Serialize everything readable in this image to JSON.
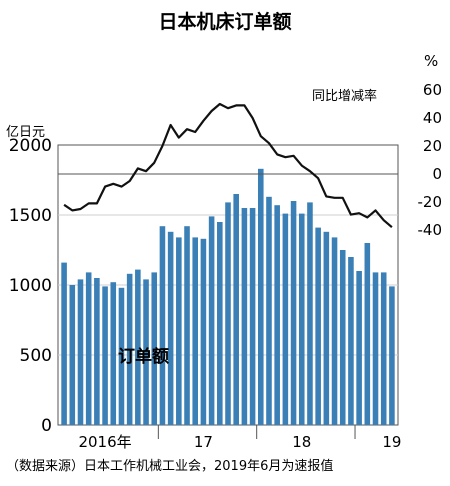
{
  "chart_data": {
    "type": "bar+line",
    "title": "日本机床订单额",
    "left_axis": {
      "unit_label": "亿日元",
      "ticks": [
        0,
        500,
        1000,
        1500,
        2000
      ],
      "ylim": [
        0,
        2000
      ]
    },
    "right_axis": {
      "unit_label": "%",
      "ticks": [
        60,
        40,
        20,
        0,
        -20,
        -40
      ],
      "ylim": [
        -40,
        60
      ]
    },
    "x_ticks": [
      {
        "label": "2016年",
        "index": 5
      },
      {
        "label": "17",
        "index": 17
      },
      {
        "label": "18",
        "index": 29
      },
      {
        "label": "19",
        "index": 40
      }
    ],
    "year_boundaries": [
      11.5,
      23.5,
      35.5
    ],
    "series": [
      {
        "name": "订单额",
        "kind": "bar",
        "axis": "left",
        "color": "#3a7fb5",
        "values": [
          1160,
          1000,
          1040,
          1090,
          1050,
          990,
          1020,
          980,
          1080,
          1110,
          1040,
          1090,
          1420,
          1380,
          1340,
          1420,
          1340,
          1330,
          1490,
          1450,
          1590,
          1650,
          1550,
          1550,
          1830,
          1630,
          1570,
          1510,
          1600,
          1510,
          1590,
          1410,
          1380,
          1340,
          1250,
          1200,
          1100,
          1300,
          1090,
          1090,
          990
        ]
      },
      {
        "name": "同比增减率",
        "kind": "line",
        "axis": "right",
        "color": "#111111",
        "values": [
          -22,
          -26,
          -25,
          -21,
          -21,
          -9,
          -7,
          -9,
          -5,
          4,
          2,
          8,
          20,
          35,
          26,
          32,
          30,
          38,
          45,
          50,
          47,
          49,
          49,
          40,
          27,
          22,
          14,
          12,
          13,
          6,
          2,
          -3,
          -16,
          -17,
          -17,
          -29,
          -28,
          -31,
          -26,
          -33,
          -38
        ]
      }
    ],
    "source": "（数据来源）日本工作机械工业会，2019年6月为速报值"
  }
}
